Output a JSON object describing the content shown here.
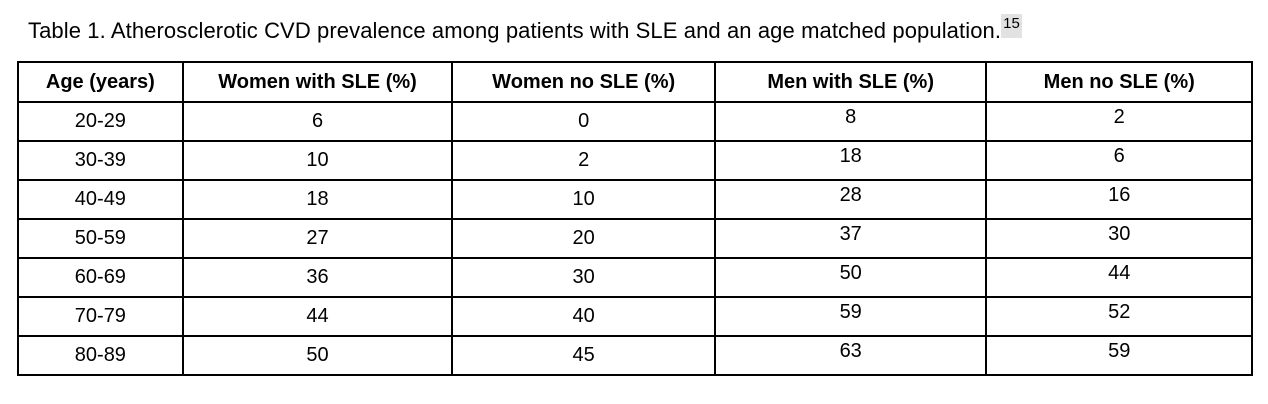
{
  "title": {
    "text": "Table 1. Atherosclerotic CVD prevalence among patients with SLE and an age matched population.",
    "footnote_ref": "15"
  },
  "colors": {
    "text": "#000000",
    "border": "#000000",
    "background": "#ffffff",
    "footnote_highlight": "#e2e2e2"
  },
  "table": {
    "columns": [
      "Age (years)",
      "Women with SLE (%)",
      "Women no SLE (%)",
      "Men with SLE (%)",
      "Men no SLE (%)"
    ],
    "rows": [
      {
        "cells": [
          "20-29",
          "6",
          "0",
          "8",
          "2"
        ]
      },
      {
        "cells": [
          "30-39",
          "10",
          "2",
          "18",
          "6"
        ]
      },
      {
        "cells": [
          "40-49",
          "18",
          "10",
          "28",
          "16"
        ]
      },
      {
        "cells": [
          "50-59",
          "27",
          "20",
          "37",
          "30"
        ]
      },
      {
        "cells": [
          "60-69",
          "36",
          "30",
          "50",
          "44"
        ]
      },
      {
        "cells": [
          "70-79",
          "44",
          "40",
          "59",
          "52"
        ]
      },
      {
        "cells": [
          "80-89",
          "50",
          "45",
          "63",
          "59"
        ]
      }
    ]
  },
  "chart_data": {
    "type": "table",
    "title": "Atherosclerotic CVD prevalence among patients with SLE and an age matched population",
    "categories": [
      "20-29",
      "30-39",
      "40-49",
      "50-59",
      "60-69",
      "70-79",
      "80-89"
    ],
    "series": [
      {
        "name": "Women with SLE (%)",
        "values": [
          6,
          10,
          18,
          27,
          36,
          44,
          50
        ]
      },
      {
        "name": "Women no SLE (%)",
        "values": [
          0,
          2,
          10,
          20,
          30,
          40,
          45
        ]
      },
      {
        "name": "Men with SLE (%)",
        "values": [
          8,
          18,
          28,
          37,
          50,
          59,
          63
        ]
      },
      {
        "name": "Men no SLE (%)",
        "values": [
          2,
          6,
          16,
          30,
          44,
          52,
          59
        ]
      }
    ]
  }
}
